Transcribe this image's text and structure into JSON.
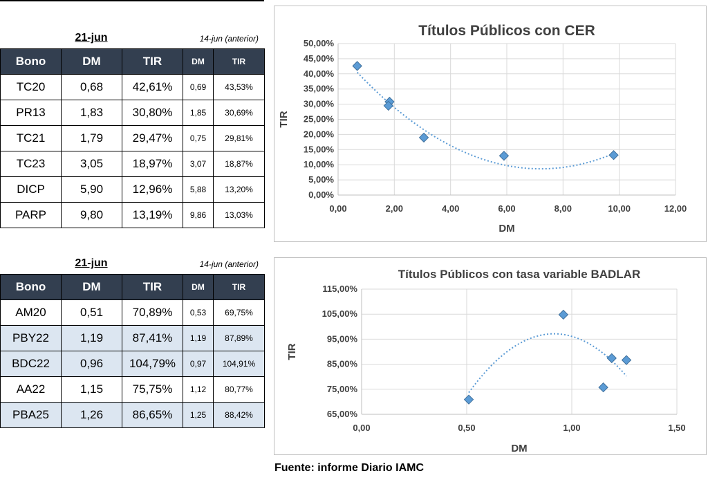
{
  "table1": {
    "date": "21-jun",
    "prev_label": "14-jun (anterior)",
    "headers": [
      "Bono",
      "DM",
      "TIR",
      "DM",
      "TIR"
    ],
    "rows": [
      {
        "bono": "TC20",
        "dm": "0,68",
        "tir": "42,61%",
        "dm_prev": "0,69",
        "tir_prev": "43,53%"
      },
      {
        "bono": "PR13",
        "dm": "1,83",
        "tir": "30,80%",
        "dm_prev": "1,85",
        "tir_prev": "30,69%"
      },
      {
        "bono": "TC21",
        "dm": "1,79",
        "tir": "29,47%",
        "dm_prev": "0,75",
        "tir_prev": "29,81%"
      },
      {
        "bono": "TC23",
        "dm": "3,05",
        "tir": "18,97%",
        "dm_prev": "3,07",
        "tir_prev": "18,87%"
      },
      {
        "bono": "DICP",
        "dm": "5,90",
        "tir": "12,96%",
        "dm_prev": "5,88",
        "tir_prev": "13,20%"
      },
      {
        "bono": "PARP",
        "dm": "9,80",
        "tir": "13,19%",
        "dm_prev": "9,86",
        "tir_prev": "13,03%"
      }
    ]
  },
  "table2": {
    "date": "21-jun",
    "prev_label": "14-jun (anterior)",
    "headers": [
      "Bono",
      "DM",
      "TIR",
      "DM",
      "TIR"
    ],
    "highlight_color": "#dce6f1",
    "rows": [
      {
        "bono": "AM20",
        "dm": "0,51",
        "tir": "70,89%",
        "dm_prev": "0,53",
        "tir_prev": "69,75%",
        "highlight": false
      },
      {
        "bono": "PBY22",
        "dm": "1,19",
        "tir": "87,41%",
        "dm_prev": "1,19",
        "tir_prev": "87,89%",
        "highlight": true
      },
      {
        "bono": "BDC22",
        "dm": "0,96",
        "tir": "104,79%",
        "dm_prev": "0,97",
        "tir_prev": "104,91%",
        "highlight": true
      },
      {
        "bono": "AA22",
        "dm": "1,15",
        "tir": "75,75%",
        "dm_prev": "1,12",
        "tir_prev": "80,77%",
        "highlight": false
      },
      {
        "bono": "PBA25",
        "dm": "1,26",
        "tir": "86,65%",
        "dm_prev": "1,25",
        "tir_prev": "88,42%",
        "highlight": true
      }
    ]
  },
  "header_color": "#333f50",
  "chart_data": [
    {
      "type": "scatter",
      "title": "Títulos Públicos con CER",
      "xlabel": "DM",
      "ylabel": "TIR",
      "xlim": [
        0,
        12
      ],
      "ylim": [
        0,
        50
      ],
      "x_ticks": [
        0,
        2,
        4,
        6,
        8,
        10,
        12
      ],
      "x_tick_labels": [
        "0,00",
        "2,00",
        "4,00",
        "6,00",
        "8,00",
        "10,00",
        "12,00"
      ],
      "y_ticks": [
        0,
        5,
        10,
        15,
        20,
        25,
        30,
        35,
        40,
        45,
        50
      ],
      "y_tick_labels": [
        "0,00%",
        "5,00%",
        "10,00%",
        "15,00%",
        "20,00%",
        "25,00%",
        "30,00%",
        "35,00%",
        "40,00%",
        "45,00%",
        "50,00%"
      ],
      "grid": true,
      "marker_color": "#5b9bd5",
      "trendline": "polynomial",
      "trendline_coeffs": [
        47.49,
        -10.78,
        0.748
      ],
      "trendline_range": [
        0.68,
        9.8
      ],
      "points": [
        {
          "x": 0.68,
          "y": 42.61
        },
        {
          "x": 1.83,
          "y": 30.8
        },
        {
          "x": 1.79,
          "y": 29.47
        },
        {
          "x": 3.05,
          "y": 18.97
        },
        {
          "x": 5.9,
          "y": 12.96
        },
        {
          "x": 9.8,
          "y": 13.19
        }
      ]
    },
    {
      "type": "scatter",
      "title": "Títulos Públicos con tasa variable BADLAR",
      "xlabel": "DM",
      "ylabel": "TIR",
      "xlim": [
        0,
        1.5
      ],
      "ylim": [
        65,
        115
      ],
      "x_ticks": [
        0,
        0.5,
        1.0,
        1.5
      ],
      "x_tick_labels": [
        "0,00",
        "0,50",
        "1,00",
        "1,50"
      ],
      "y_ticks": [
        65,
        75,
        85,
        95,
        105,
        115
      ],
      "y_tick_labels": [
        "65,00%",
        "75,00%",
        "85,00%",
        "95,00%",
        "105,00%",
        "115,00%"
      ],
      "grid": true,
      "marker_color": "#5b9bd5",
      "trendline": "polynomial",
      "trendline_coeffs": [
        -22.46,
        261.2,
        -142.6
      ],
      "trendline_range": [
        0.51,
        1.26
      ],
      "points": [
        {
          "x": 0.51,
          "y": 70.89
        },
        {
          "x": 1.19,
          "y": 87.41
        },
        {
          "x": 0.96,
          "y": 104.79
        },
        {
          "x": 1.15,
          "y": 75.75
        },
        {
          "x": 1.26,
          "y": 86.65
        }
      ]
    }
  ],
  "source": "Fuente: informe Diario IAMC"
}
